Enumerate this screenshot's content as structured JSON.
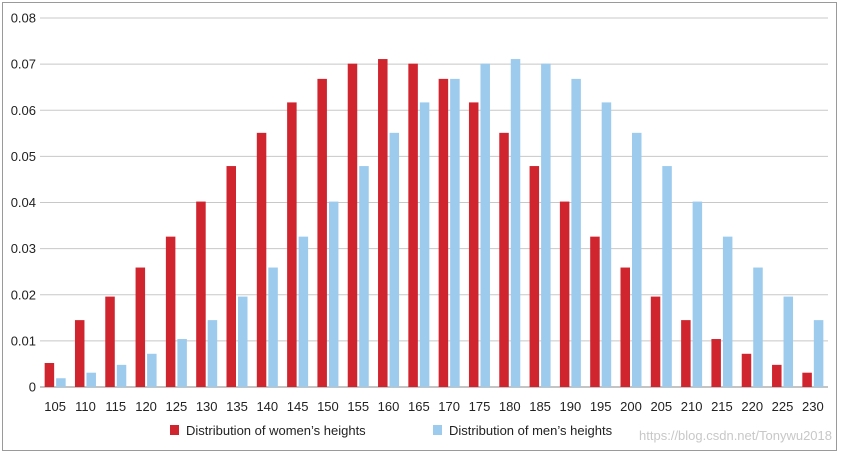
{
  "chart_data": {
    "type": "bar",
    "categories": [
      "105",
      "110",
      "115",
      "120",
      "125",
      "130",
      "135",
      "140",
      "145",
      "150",
      "155",
      "160",
      "165",
      "170",
      "175",
      "180",
      "185",
      "190",
      "195",
      "200",
      "205",
      "210",
      "215",
      "220",
      "225",
      "230"
    ],
    "series": [
      {
        "name": "Distribution of women’s heights",
        "color": "#d0242e",
        "values": [
          0.0052,
          0.0145,
          0.0196,
          0.0259,
          0.0326,
          0.0402,
          0.0479,
          0.0551,
          0.0617,
          0.0668,
          0.0701,
          0.0711,
          0.0701,
          0.0668,
          0.0617,
          0.0551,
          0.0479,
          0.0402,
          0.0326,
          0.0259,
          0.0196,
          0.0145,
          0.0104,
          0.0072,
          0.0048,
          0.0031
        ]
      },
      {
        "name": "Distribution of men’s heights",
        "color": "#9ccbee",
        "values": [
          0.0019,
          0.0031,
          0.0048,
          0.0072,
          0.0104,
          0.0145,
          0.0196,
          0.0259,
          0.0326,
          0.0402,
          0.0479,
          0.0551,
          0.0617,
          0.0668,
          0.0701,
          0.0711,
          0.0701,
          0.0668,
          0.0617,
          0.0551,
          0.0479,
          0.0402,
          0.0326,
          0.0259,
          0.0196,
          0.0145
        ]
      }
    ],
    "yticks": [
      "0",
      "0.01",
      "0.02",
      "0.03",
      "0.04",
      "0.05",
      "0.06",
      "0.07",
      "0.08"
    ],
    "ylim": [
      0,
      0.08
    ],
    "grid": true,
    "legend_position": "bottom"
  },
  "watermark": "https://blog.csdn.net/Tonywu2018"
}
